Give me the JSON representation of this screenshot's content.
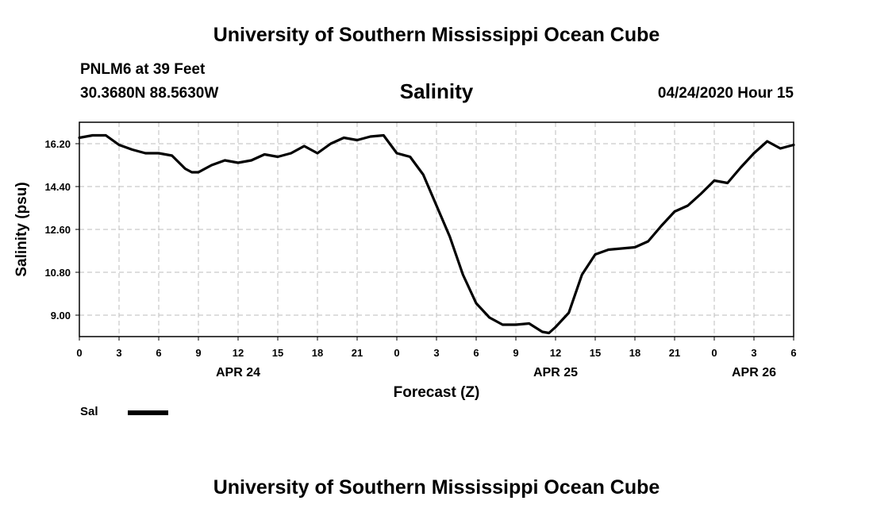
{
  "header": {
    "title": "University of Southern Mississippi Ocean Cube",
    "station": "PNLM6 at 39 Feet",
    "coordinates": "30.3680N 88.5630W",
    "timestamp": "04/24/2020 Hour 15"
  },
  "footer": {
    "title": "University of Southern Mississippi Ocean Cube"
  },
  "chart_data": {
    "type": "line",
    "title": "Salinity",
    "xlabel": "Forecast (Z)",
    "ylabel": "Salinity (psu)",
    "x_unit": "hours from 00Z Apr 24",
    "xlim": [
      0,
      54
    ],
    "ylim": [
      8.1,
      17.1
    ],
    "grid": true,
    "legend": "bottom-left",
    "y_ticks": [
      "9.00",
      "10.80",
      "12.60",
      "14.40",
      "16.20"
    ],
    "y_tick_values": [
      9.0,
      10.8,
      12.6,
      14.4,
      16.2
    ],
    "x_ticks": [
      "0",
      "3",
      "6",
      "9",
      "12",
      "15",
      "18",
      "21",
      "0",
      "3",
      "6",
      "9",
      "12",
      "15",
      "18",
      "21",
      "0",
      "3",
      "6"
    ],
    "date_labels": [
      {
        "label": "APR 24",
        "hour": 12
      },
      {
        "label": "APR 25",
        "hour": 36
      },
      {
        "label": "APR 26",
        "hour": 51
      }
    ],
    "series": [
      {
        "name": "Sal",
        "color": "#000000",
        "x": [
          0,
          1,
          2,
          3,
          4,
          5,
          6,
          7,
          8,
          8.5,
          9,
          10,
          11,
          12,
          13,
          14,
          15,
          16,
          17,
          18,
          19,
          20,
          21,
          22,
          23,
          24,
          25,
          26,
          27,
          28,
          29,
          30,
          31,
          32,
          33,
          34,
          35,
          35.5,
          36,
          37,
          38,
          39,
          40,
          41,
          42,
          43,
          44,
          45,
          46,
          47,
          48,
          49,
          50,
          51,
          52,
          53,
          54
        ],
        "y": [
          16.45,
          16.55,
          16.55,
          16.15,
          15.95,
          15.8,
          15.8,
          15.7,
          15.15,
          15.0,
          15.0,
          15.3,
          15.5,
          15.4,
          15.5,
          15.75,
          15.65,
          15.8,
          16.1,
          15.8,
          16.2,
          16.45,
          16.35,
          16.5,
          16.55,
          15.8,
          15.65,
          14.9,
          13.6,
          12.3,
          10.7,
          9.5,
          8.9,
          8.6,
          8.6,
          8.65,
          8.3,
          8.25,
          8.5,
          9.1,
          10.7,
          11.55,
          11.75,
          11.8,
          11.85,
          12.1,
          12.75,
          13.35,
          13.6,
          14.1,
          14.65,
          14.55,
          15.2,
          15.8,
          16.3,
          16.0,
          16.15
        ]
      }
    ]
  }
}
